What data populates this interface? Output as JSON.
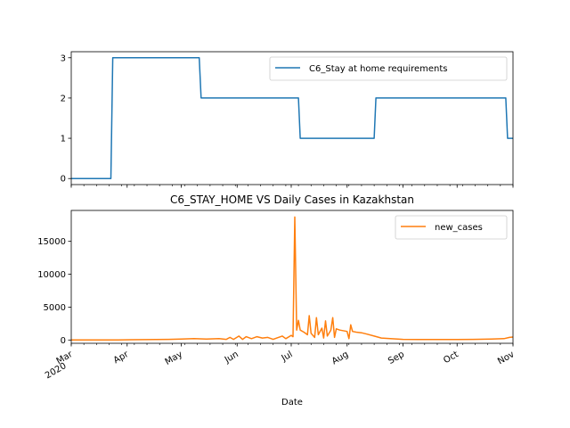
{
  "chart_data": [
    {
      "type": "line",
      "title": "",
      "xlabel": "",
      "ylabel": "",
      "ylim": [
        -0.15,
        3.15
      ],
      "yticks": [
        0,
        1,
        2,
        3
      ],
      "legend": {
        "placement": "top-right"
      },
      "grid": false,
      "series": [
        {
          "name": "C6_Stay at home requirements",
          "color": "#1f77b4",
          "points": [
            [
              "2020-03-01",
              0
            ],
            [
              "2020-03-23",
              0
            ],
            [
              "2020-03-24",
              3
            ],
            [
              "2020-05-11",
              3
            ],
            [
              "2020-05-12",
              2
            ],
            [
              "2020-07-05",
              2
            ],
            [
              "2020-07-06",
              1
            ],
            [
              "2020-08-16",
              1
            ],
            [
              "2020-08-17",
              2
            ],
            [
              "2020-10-28",
              2
            ],
            [
              "2020-10-29",
              1
            ],
            [
              "2020-11-01",
              1
            ]
          ]
        }
      ]
    },
    {
      "type": "line",
      "title": "C6_STAY_HOME VS Daily Cases in Kazakhstan",
      "xlabel": "Date",
      "ylabel": "",
      "ylim": [
        -500,
        19700
      ],
      "yticks": [
        0,
        5000,
        10000,
        15000
      ],
      "xlim": [
        "2020-03-01",
        "2020-11-01"
      ],
      "xticks": [
        {
          "date": "2020-03-01",
          "label": "Mar",
          "sublabel": "2020"
        },
        {
          "date": "2020-04-01",
          "label": "Apr"
        },
        {
          "date": "2020-05-01",
          "label": "May"
        },
        {
          "date": "2020-06-01",
          "label": "Jun"
        },
        {
          "date": "2020-07-01",
          "label": "Jul"
        },
        {
          "date": "2020-08-01",
          "label": "Aug"
        },
        {
          "date": "2020-09-01",
          "label": "Sep"
        },
        {
          "date": "2020-10-01",
          "label": "Oct"
        },
        {
          "date": "2020-11-01",
          "label": "Nov"
        }
      ],
      "legend": {
        "placement": "top-right"
      },
      "grid": false,
      "series": [
        {
          "name": "new_cases",
          "color": "#ff7f0e",
          "points": [
            [
              "2020-03-01",
              0
            ],
            [
              "2020-03-13",
              0
            ],
            [
              "2020-03-20",
              10
            ],
            [
              "2020-03-27",
              20
            ],
            [
              "2020-04-03",
              40
            ],
            [
              "2020-04-10",
              60
            ],
            [
              "2020-04-17",
              80
            ],
            [
              "2020-04-24",
              100
            ],
            [
              "2020-05-01",
              150
            ],
            [
              "2020-05-08",
              200
            ],
            [
              "2020-05-15",
              150
            ],
            [
              "2020-05-22",
              200
            ],
            [
              "2020-05-26",
              100
            ],
            [
              "2020-05-28",
              400
            ],
            [
              "2020-05-30",
              100
            ],
            [
              "2020-06-02",
              600
            ],
            [
              "2020-06-04",
              100
            ],
            [
              "2020-06-06",
              500
            ],
            [
              "2020-06-09",
              200
            ],
            [
              "2020-06-12",
              500
            ],
            [
              "2020-06-15",
              300
            ],
            [
              "2020-06-18",
              400
            ],
            [
              "2020-06-21",
              100
            ],
            [
              "2020-06-23",
              300
            ],
            [
              "2020-06-26",
              600
            ],
            [
              "2020-06-28",
              200
            ],
            [
              "2020-07-01",
              700
            ],
            [
              "2020-07-02",
              500
            ],
            [
              "2020-07-03",
              18700
            ],
            [
              "2020-07-04",
              1500
            ],
            [
              "2020-07-05",
              3000
            ],
            [
              "2020-07-06",
              1500
            ],
            [
              "2020-07-08",
              1200
            ],
            [
              "2020-07-10",
              800
            ],
            [
              "2020-07-11",
              3700
            ],
            [
              "2020-07-12",
              1000
            ],
            [
              "2020-07-14",
              400
            ],
            [
              "2020-07-15",
              3400
            ],
            [
              "2020-07-16",
              800
            ],
            [
              "2020-07-18",
              1800
            ],
            [
              "2020-07-19",
              300
            ],
            [
              "2020-07-20",
              2900
            ],
            [
              "2020-07-21",
              600
            ],
            [
              "2020-07-23",
              1500
            ],
            [
              "2020-07-24",
              3400
            ],
            [
              "2020-07-25",
              400
            ],
            [
              "2020-07-26",
              1700
            ],
            [
              "2020-07-28",
              1500
            ],
            [
              "2020-08-01",
              1300
            ],
            [
              "2020-08-02",
              200
            ],
            [
              "2020-08-03",
              2300
            ],
            [
              "2020-08-04",
              1300
            ],
            [
              "2020-08-06",
              1200
            ],
            [
              "2020-08-09",
              1100
            ],
            [
              "2020-08-12",
              900
            ],
            [
              "2020-08-16",
              600
            ],
            [
              "2020-08-20",
              300
            ],
            [
              "2020-08-25",
              200
            ],
            [
              "2020-09-01",
              100
            ],
            [
              "2020-09-10",
              80
            ],
            [
              "2020-09-20",
              70
            ],
            [
              "2020-10-01",
              80
            ],
            [
              "2020-10-10",
              100
            ],
            [
              "2020-10-20",
              150
            ],
            [
              "2020-10-27",
              200
            ],
            [
              "2020-10-30",
              400
            ],
            [
              "2020-11-01",
              450
            ]
          ]
        }
      ]
    }
  ]
}
